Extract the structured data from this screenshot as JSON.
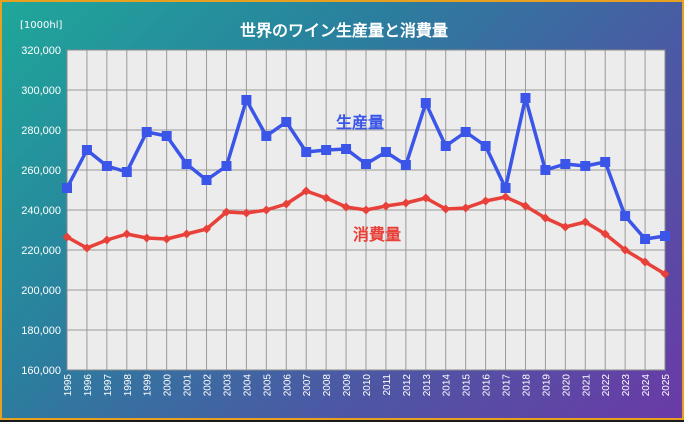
{
  "chart_data": {
    "type": "line",
    "title": "世界のワイン生産量と消費量",
    "unit_label": "[1000hl]",
    "x": [
      "1995",
      "1996",
      "1997",
      "1998",
      "1999",
      "2000",
      "2001",
      "2002",
      "2003",
      "2004",
      "2005",
      "2006",
      "2007",
      "2008",
      "2009",
      "2010",
      "2011",
      "2012",
      "2013",
      "2014",
      "2015",
      "2016",
      "2017",
      "2018",
      "2019",
      "2020",
      "2021",
      "2022",
      "2023",
      "2024",
      "2025"
    ],
    "ylim": [
      160000,
      320000
    ],
    "yticks": [
      "160,000",
      "180,000",
      "200,000",
      "220,000",
      "240,000",
      "260,000",
      "280,000",
      "300,000",
      "320,000"
    ],
    "grid": true,
    "series": [
      {
        "name": "生産量",
        "color": "#3a55e8",
        "marker": "square",
        "values": [
          251000,
          270000,
          262000,
          259000,
          279000,
          277000,
          263000,
          255000,
          262000,
          295000,
          277000,
          284000,
          269000,
          270000,
          270500,
          263000,
          269000,
          262500,
          293500,
          272000,
          279000,
          272000,
          251000,
          296000,
          260000,
          263000,
          262000,
          264000,
          237000,
          225500,
          227000
        ]
      },
      {
        "name": "消費量",
        "color": "#e8413a",
        "marker": "diamond",
        "values": [
          226500,
          221000,
          225000,
          228000,
          226000,
          225500,
          228000,
          230500,
          239000,
          238500,
          240000,
          243000,
          249500,
          246000,
          241500,
          240000,
          242000,
          243500,
          246000,
          240500,
          241000,
          244500,
          246500,
          242000,
          236000,
          231500,
          234000,
          228000,
          220000,
          214000,
          208000
        ]
      }
    ]
  },
  "colors": {
    "frame_border": "#e8a020",
    "plot_background": "#ececec",
    "grid": "#9a9a9a"
  }
}
